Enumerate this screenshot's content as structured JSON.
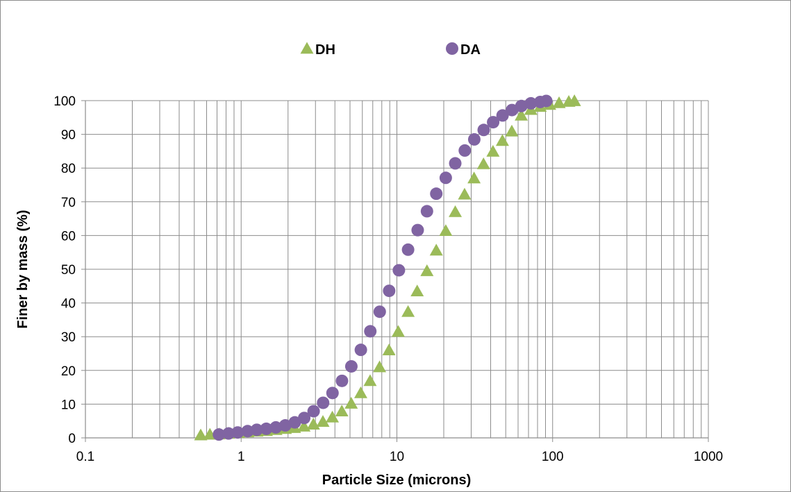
{
  "chart_data": {
    "type": "scatter",
    "title": "",
    "xlabel": "Particle Size (microns)",
    "ylabel": "Finer by mass (%)",
    "x_scale": "log",
    "xlim": [
      0.1,
      1000
    ],
    "ylim": [
      0,
      100
    ],
    "x_ticks": [
      "0.1",
      "1",
      "10",
      "100",
      "1000"
    ],
    "y_ticks": [
      "0",
      "10",
      "20",
      "30",
      "40",
      "50",
      "60",
      "70",
      "80",
      "90",
      "100"
    ],
    "grid": true,
    "legend_position": "top",
    "series": [
      {
        "name": "DH",
        "marker": "triangle",
        "color": "#9bbb59",
        "x": [
          0.55,
          0.63,
          0.72,
          0.83,
          0.96,
          1.1,
          1.26,
          1.45,
          1.67,
          1.92,
          2.2,
          2.53,
          2.91,
          3.35,
          3.85,
          4.43,
          5.09,
          5.86,
          6.73,
          7.74,
          8.9,
          10.2,
          11.8,
          13.5,
          15.6,
          17.9,
          20.6,
          23.7,
          27.2,
          31.3,
          36.0,
          41.4,
          47.6,
          54.7,
          62.9,
          72.4,
          83.2,
          95.7,
          110,
          127,
          138
        ],
        "y": [
          0.8,
          1.0,
          1.1,
          1.3,
          1.5,
          1.7,
          1.9,
          2.1,
          2.4,
          2.7,
          3.0,
          3.4,
          4.0,
          4.8,
          6.1,
          7.9,
          10.2,
          13.3,
          16.9,
          21.0,
          26.0,
          31.5,
          37.4,
          43.5,
          49.5,
          55.6,
          61.4,
          67.0,
          72.2,
          77.0,
          81.2,
          84.9,
          88.1,
          90.9,
          95.6,
          97.3,
          98.2,
          98.8,
          99.3,
          99.7,
          99.9
        ]
      },
      {
        "name": "DA",
        "marker": "circle",
        "color": "#8064a2",
        "x": [
          0.72,
          0.83,
          0.95,
          1.1,
          1.26,
          1.45,
          1.67,
          1.92,
          2.21,
          2.54,
          2.92,
          3.36,
          3.86,
          4.44,
          5.1,
          5.87,
          6.75,
          7.76,
          8.92,
          10.3,
          11.8,
          13.6,
          15.6,
          17.9,
          20.6,
          23.7,
          27.3,
          31.4,
          36.1,
          41.5,
          47.7,
          54.8,
          63.0,
          72.5,
          83.3,
          91.0
        ],
        "y": [
          1.0,
          1.3,
          1.6,
          2.0,
          2.4,
          2.7,
          3.1,
          3.7,
          4.6,
          5.9,
          7.9,
          10.4,
          13.3,
          16.9,
          21.2,
          26.1,
          31.6,
          37.4,
          43.6,
          49.7,
          55.8,
          61.6,
          67.2,
          72.4,
          77.1,
          81.4,
          85.2,
          88.5,
          91.3,
          93.6,
          95.6,
          97.2,
          98.4,
          99.2,
          99.6,
          99.9
        ]
      }
    ]
  }
}
